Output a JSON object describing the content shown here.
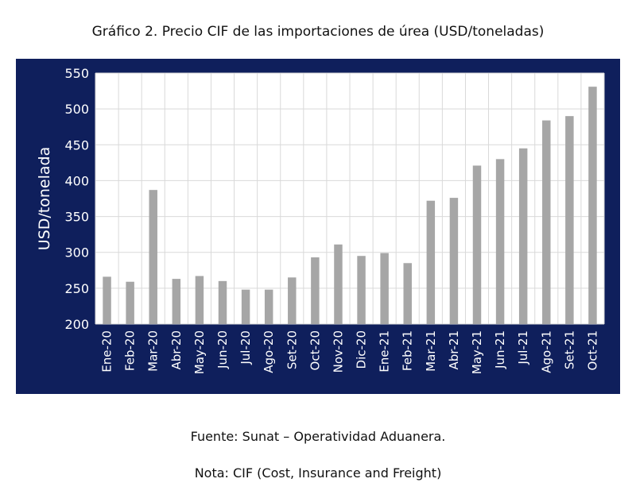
{
  "header": {
    "title": "Gráfico 2. Precio CIF de las importaciones de úrea (USD/toneladas)"
  },
  "footer": {
    "source": "Fuente: Sunat – Operatividad Aduanera.",
    "note": "Nota: CIF (Cost, Insurance and Freight)"
  },
  "colors": {
    "panel_background": "#0f1f5c",
    "plot_background": "#ffffff",
    "bar": "#a6a6a6",
    "axis_text": "#ffffff",
    "grid": "#d9d9d9"
  },
  "chart_data": {
    "type": "bar",
    "title": "Gráfico 2. Precio CIF de las importaciones de úrea (USD/toneladas)",
    "xlabel": "",
    "ylabel": "USD/tonelada",
    "ylim": [
      200,
      550
    ],
    "yticks": [
      200,
      250,
      300,
      350,
      400,
      450,
      500,
      550
    ],
    "grid": true,
    "legend": "none",
    "categories": [
      "Ene-20",
      "Feb-20",
      "Mar-20",
      "Abr-20",
      "May-20",
      "Jun-20",
      "Jul-20",
      "Ago-20",
      "Set-20",
      "Oct-20",
      "Nov-20",
      "Dic-20",
      "Ene-21",
      "Feb-21",
      "Mar-21",
      "Abr-21",
      "May-21",
      "Jun-21",
      "Jul-21",
      "Ago-21",
      "Set-21",
      "Oct-21"
    ],
    "values": [
      266,
      259,
      387,
      263,
      267,
      260,
      248,
      248,
      265,
      293,
      311,
      295,
      299,
      285,
      372,
      376,
      421,
      430,
      445,
      484,
      490,
      531
    ]
  }
}
